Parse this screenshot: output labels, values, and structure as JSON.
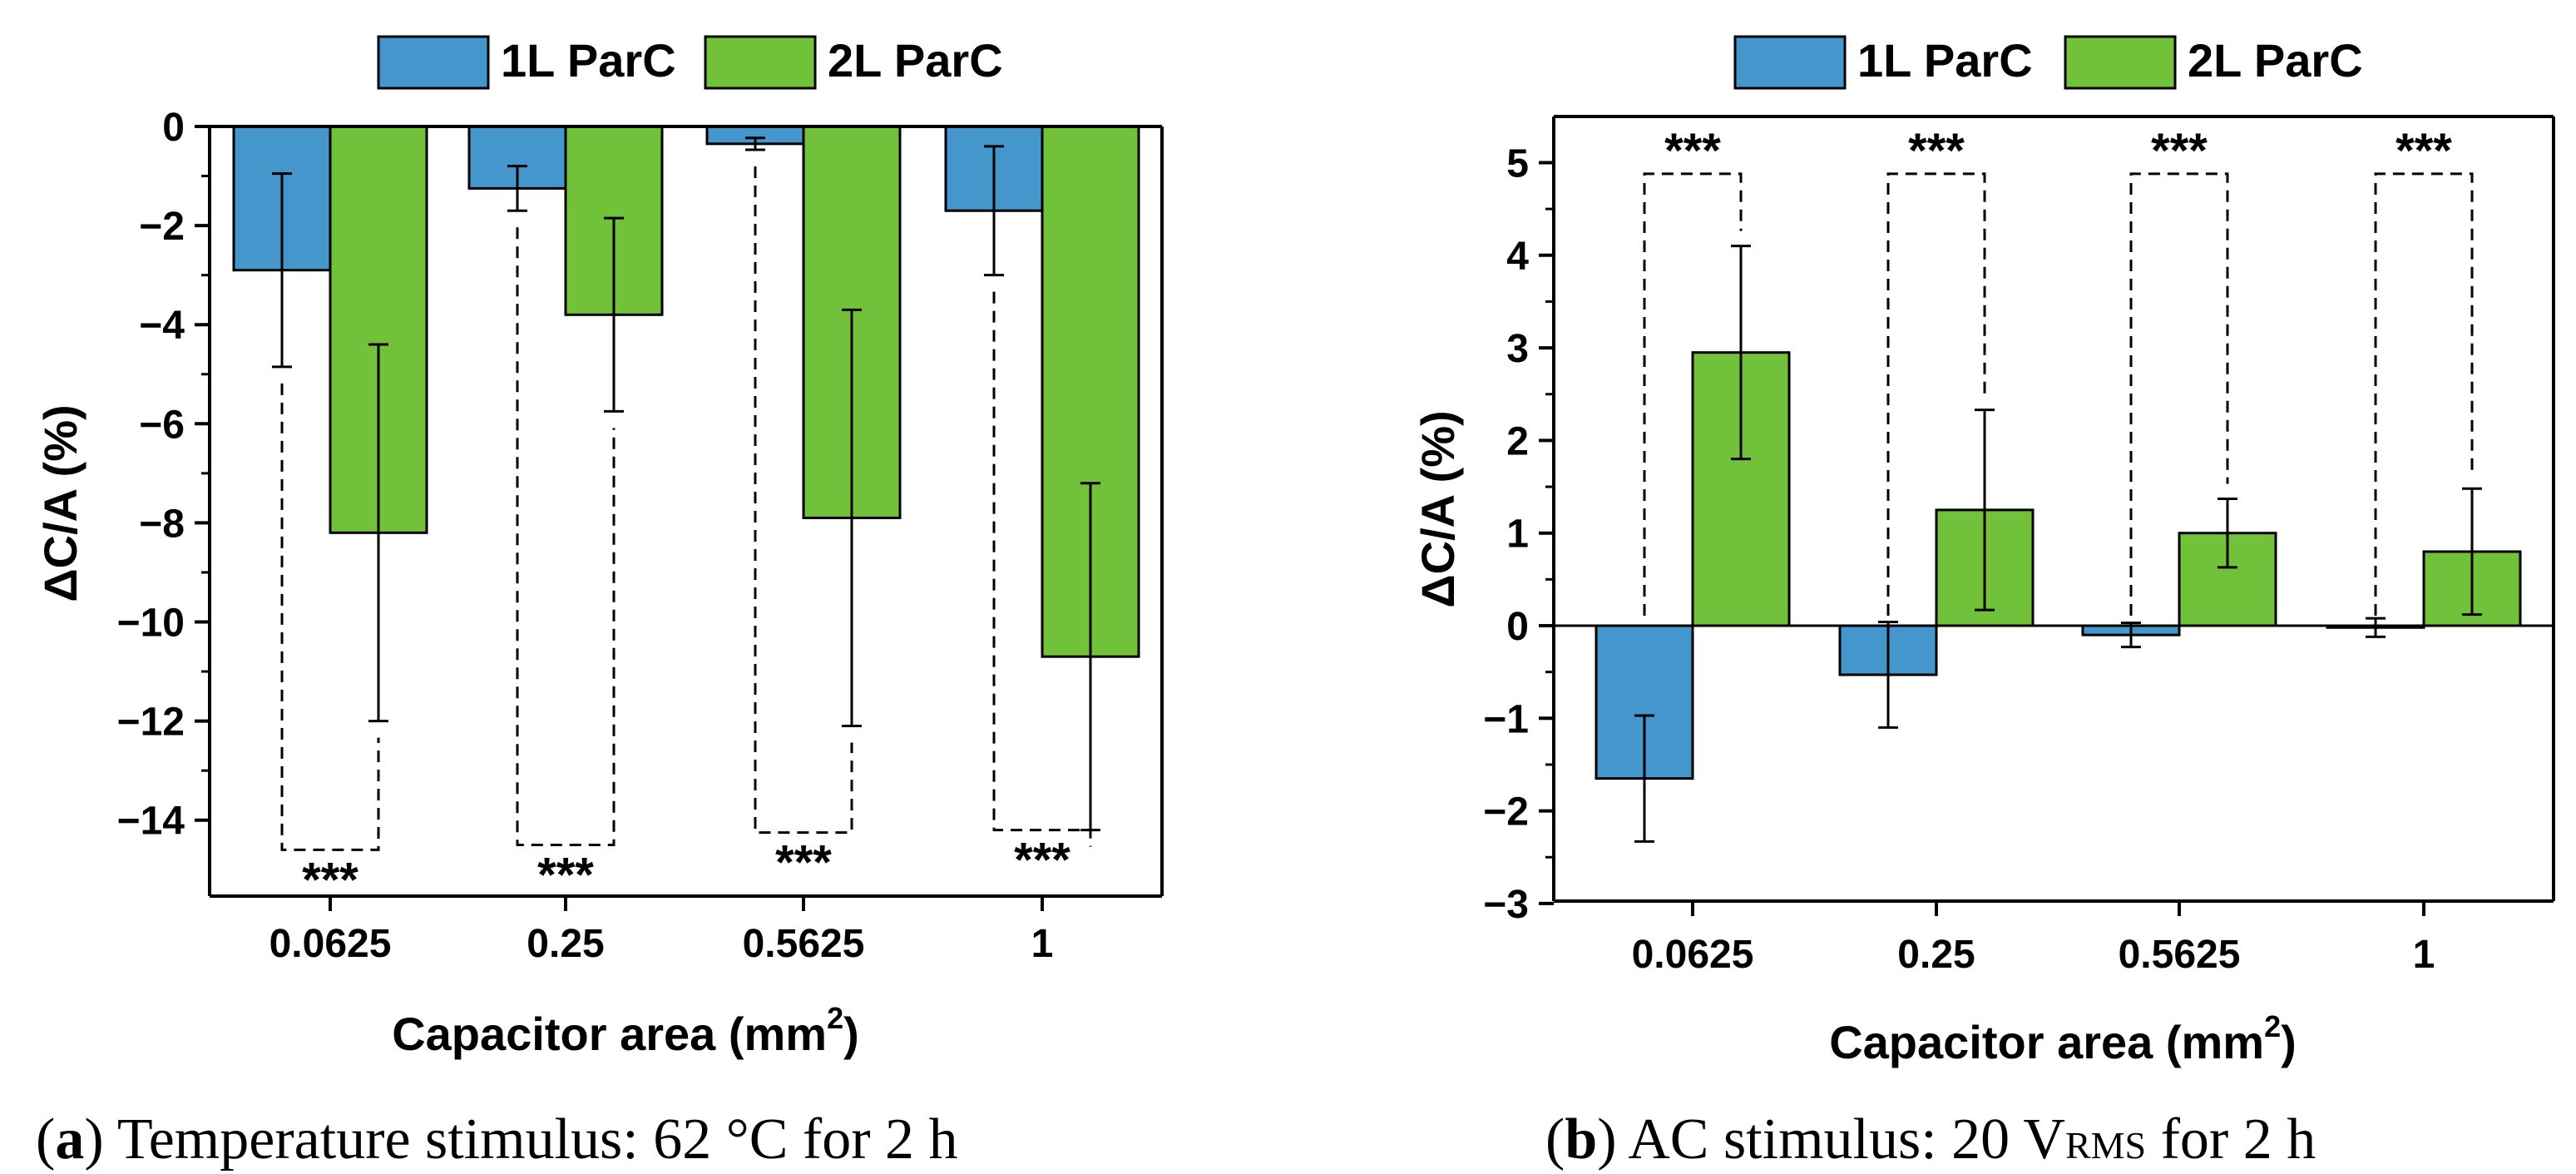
{
  "colors": {
    "series1": "#4596CC",
    "series2": "#72C13A",
    "stroke": "#000000"
  },
  "legend": {
    "items": [
      "1L ParC",
      "2L ParC"
    ]
  },
  "significance_label": "***",
  "chart_data": [
    {
      "type": "bar",
      "panel": "a",
      "categories": [
        "0.0625",
        "0.25",
        "0.5625",
        "1"
      ],
      "series": [
        {
          "name": "1L ParC",
          "values": [
            -2.9,
            -1.25,
            -0.35,
            -1.7
          ],
          "errors": [
            1.95,
            0.45,
            0.12,
            1.3
          ]
        },
        {
          "name": "2L ParC",
          "values": [
            -8.2,
            -3.8,
            -7.9,
            -10.7
          ],
          "errors": [
            3.8,
            1.95,
            4.2,
            3.5
          ]
        }
      ],
      "significance": [
        {
          "category": "0.0625",
          "label": "***",
          "bracket_y": -14.6
        },
        {
          "category": "0.25",
          "label": "***",
          "bracket_y": -14.5
        },
        {
          "category": "0.5625",
          "label": "***",
          "bracket_y": -14.25
        },
        {
          "category": "1",
          "label": "***",
          "bracket_y": -14.2
        }
      ],
      "xlabel": "Capacitor area (mm",
      "xlabel_sup": "2",
      "xlabel_end": ")",
      "ylabel": "ΔC/A (%)",
      "ylim": [
        -15.5,
        0
      ],
      "yticks": [
        0,
        -2,
        -4,
        -6,
        -8,
        -10,
        -12,
        -14
      ],
      "ytick_labels": [
        "0",
        "−2",
        "−4",
        "−6",
        "−8",
        "−10",
        "−12",
        "−14"
      ],
      "legend_position": "top-center",
      "grid": false
    },
    {
      "type": "bar",
      "panel": "b",
      "categories": [
        "0.0625",
        "0.25",
        "0.5625",
        "1"
      ],
      "series": [
        {
          "name": "1L ParC",
          "values": [
            -1.65,
            -0.53,
            -0.1,
            -0.02
          ],
          "errors": [
            0.68,
            0.57,
            0.13,
            0.1
          ]
        },
        {
          "name": "2L ParC",
          "values": [
            2.95,
            1.25,
            1.0,
            0.8
          ],
          "errors": [
            1.15,
            1.08,
            0.37,
            0.68
          ]
        }
      ],
      "significance": [
        {
          "category": "0.0625",
          "label": "***",
          "bracket_y": 4.88
        },
        {
          "category": "0.25",
          "label": "***",
          "bracket_y": 4.88
        },
        {
          "category": "0.5625",
          "label": "***",
          "bracket_y": 4.88
        },
        {
          "category": "1",
          "label": "***",
          "bracket_y": 4.88
        }
      ],
      "xlabel": "Capacitor area (mm",
      "xlabel_sup": "2",
      "xlabel_end": ")",
      "ylabel": "ΔC/A (%)",
      "ylim": [
        -3,
        5.5
      ],
      "yticks": [
        5,
        4,
        3,
        2,
        1,
        0,
        -1,
        -2,
        -3
      ],
      "ytick_labels": [
        "5",
        "4",
        "3",
        "2",
        "1",
        "0",
        "−1",
        "−2",
        "−3"
      ],
      "legend_position": "top-center",
      "grid": false
    }
  ],
  "captions": {
    "a": {
      "letter": "a",
      "text": " Temperature stimulus: 62 °C for 2 h"
    },
    "b": {
      "letter": "b",
      "text_before": " AC stimulus: 20 V",
      "sub": "RMS",
      "text_after": " for 2 h"
    }
  }
}
